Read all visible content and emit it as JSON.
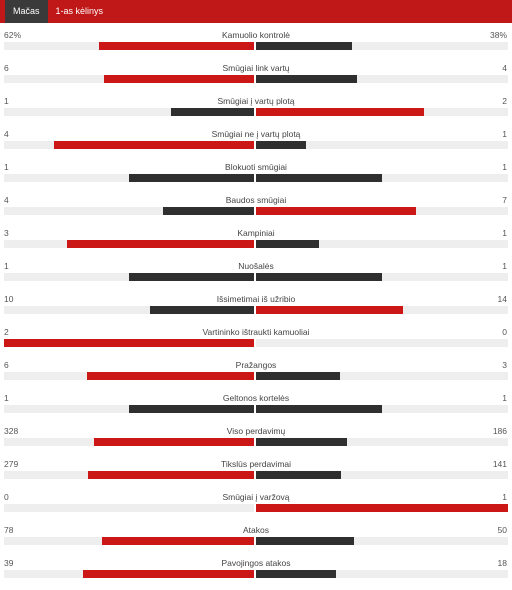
{
  "tabs": [
    {
      "label": "Mačas",
      "active": true
    },
    {
      "label": "1-as kėlinys",
      "active": false
    }
  ],
  "colors": {
    "header_bg": "#c01818",
    "active_tab_bg": "#3a3a3a",
    "leading_bar": "#cc1717",
    "trailing_bar": "#2f2f2f",
    "track": "#eeeeee"
  },
  "stats": [
    {
      "label": "Kamuolio kontrolė",
      "home": "62%",
      "away": "38%",
      "home_value": 62,
      "away_value": 38
    },
    {
      "label": "Smūgiai link vartų",
      "home": "6",
      "away": "4",
      "home_value": 6,
      "away_value": 4
    },
    {
      "label": "Smūgiai į vartų plotą",
      "home": "1",
      "away": "2",
      "home_value": 1,
      "away_value": 2
    },
    {
      "label": "Smūgiai ne į vartų plotą",
      "home": "4",
      "away": "1",
      "home_value": 4,
      "away_value": 1
    },
    {
      "label": "Blokuoti smūgiai",
      "home": "1",
      "away": "1",
      "home_value": 1,
      "away_value": 1
    },
    {
      "label": "Baudos smūgiai",
      "home": "4",
      "away": "7",
      "home_value": 4,
      "away_value": 7
    },
    {
      "label": "Kampiniai",
      "home": "3",
      "away": "1",
      "home_value": 3,
      "away_value": 1
    },
    {
      "label": "Nuošalės",
      "home": "1",
      "away": "1",
      "home_value": 1,
      "away_value": 1
    },
    {
      "label": "Išsimetimai iš užribio",
      "home": "10",
      "away": "14",
      "home_value": 10,
      "away_value": 14
    },
    {
      "label": "Vartininko ištraukti kamuoliai",
      "home": "2",
      "away": "0",
      "home_value": 2,
      "away_value": 0
    },
    {
      "label": "Pražangos",
      "home": "6",
      "away": "3",
      "home_value": 6,
      "away_value": 3
    },
    {
      "label": "Geltonos kortelės",
      "home": "1",
      "away": "1",
      "home_value": 1,
      "away_value": 1
    },
    {
      "label": "Viso perdavimų",
      "home": "328",
      "away": "186",
      "home_value": 328,
      "away_value": 186
    },
    {
      "label": "Tikslūs perdavimai",
      "home": "279",
      "away": "141",
      "home_value": 279,
      "away_value": 141
    },
    {
      "label": "Smūgiai į varžovą",
      "home": "0",
      "away": "1",
      "home_value": 0,
      "away_value": 1
    },
    {
      "label": "Atakos",
      "home": "78",
      "away": "50",
      "home_value": 78,
      "away_value": 50
    },
    {
      "label": "Pavojingos atakos",
      "home": "39",
      "away": "18",
      "home_value": 39,
      "away_value": 18
    }
  ]
}
